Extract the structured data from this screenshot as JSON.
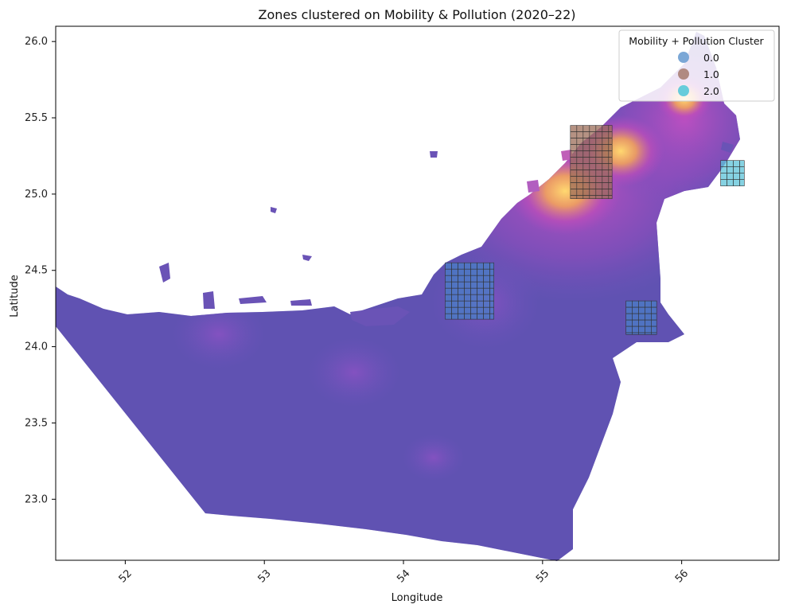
{
  "figure": {
    "title": "Zones clustered on Mobility & Pollution (2020–22)",
    "xlabel": "Longitude",
    "ylabel": "Latitude"
  },
  "axes": {
    "x_ticks": [
      "52",
      "53",
      "54",
      "55",
      "56"
    ],
    "y_ticks": [
      "26.0",
      "25.5",
      "25.0",
      "24.5",
      "24.0",
      "23.5",
      "23.0"
    ],
    "xlim": [
      51.5,
      56.7
    ],
    "ylim": [
      22.6,
      26.1
    ]
  },
  "legend": {
    "title": "Mobility + Pollution Cluster",
    "placement": "top-right",
    "items": [
      {
        "label": "0.0",
        "color": "#7ba7d6"
      },
      {
        "label": "1.0",
        "color": "#b08a82"
      },
      {
        "label": "2.0",
        "color": "#67ccdb"
      }
    ]
  },
  "colors": {
    "land_base": "#5c54b0",
    "hotspot_magenta": "#b14cc0",
    "hotspot_yellow": "#ffd470",
    "cluster_0": "#4a7fc7",
    "cluster_1": "#9c6e5a",
    "cluster_2": "#5cc3d8"
  },
  "chart_data": {
    "type": "map",
    "title": "Zones clustered on Mobility & Pollution (2020–22)",
    "xlabel": "Longitude",
    "ylabel": "Latitude",
    "xlim": [
      51.5,
      56.7
    ],
    "ylim": [
      22.6,
      26.1
    ],
    "legend_title": "Mobility + Pollution Cluster",
    "legend_placement": "top-right",
    "clusters": [
      {
        "name": "0.0",
        "lon_range": [
          54.3,
          54.65
        ],
        "lat_range": [
          24.18,
          24.55
        ],
        "label": 0
      },
      {
        "name": "1.0",
        "lon_range": [
          55.2,
          55.5
        ],
        "lat_range": [
          24.97,
          25.45
        ],
        "label": 1
      },
      {
        "name": "0.0",
        "lon_range": [
          55.6,
          55.82
        ],
        "lat_range": [
          24.08,
          24.3
        ],
        "label": 0
      },
      {
        "name": "2.0",
        "lon_range": [
          56.28,
          56.45
        ],
        "lat_range": [
          25.05,
          25.22
        ],
        "label": 2
      }
    ]
  }
}
